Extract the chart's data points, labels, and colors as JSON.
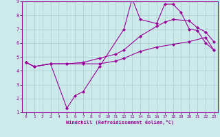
{
  "xlabel": "Windchill (Refroidissement éolien,°C)",
  "bg_color": "#cceaea",
  "line_color": "#990099",
  "grid_color": "#aacccc",
  "xlim": [
    -0.5,
    23.5
  ],
  "ylim": [
    1,
    9
  ],
  "xticks": [
    0,
    1,
    2,
    3,
    4,
    5,
    6,
    7,
    8,
    9,
    10,
    11,
    12,
    13,
    14,
    15,
    16,
    17,
    18,
    19,
    20,
    21,
    22,
    23
  ],
  "yticks": [
    1,
    2,
    3,
    4,
    5,
    6,
    7,
    8,
    9
  ],
  "line1_x": [
    0,
    1,
    3,
    5,
    6,
    7,
    9,
    12,
    13,
    14,
    16,
    17,
    18,
    19,
    20,
    21,
    22,
    23
  ],
  "line1_y": [
    4.6,
    4.3,
    4.5,
    1.3,
    2.2,
    2.5,
    4.3,
    7.0,
    9.2,
    7.7,
    7.4,
    8.8,
    8.8,
    8.2,
    7.0,
    6.9,
    6.0,
    5.5
  ],
  "line2_x": [
    0,
    1,
    3,
    5,
    7,
    9,
    11,
    12,
    14,
    16,
    17,
    18,
    20,
    21,
    22,
    23
  ],
  "line2_y": [
    4.6,
    4.3,
    4.5,
    4.5,
    4.6,
    4.9,
    5.2,
    5.5,
    6.5,
    7.2,
    7.5,
    7.7,
    7.6,
    7.1,
    6.8,
    6.1
  ],
  "line3_x": [
    0,
    1,
    3,
    5,
    7,
    9,
    11,
    12,
    14,
    16,
    18,
    20,
    22,
    23
  ],
  "line3_y": [
    4.6,
    4.3,
    4.5,
    4.5,
    4.5,
    4.5,
    4.7,
    4.9,
    5.4,
    5.7,
    5.9,
    6.1,
    6.4,
    5.5
  ]
}
